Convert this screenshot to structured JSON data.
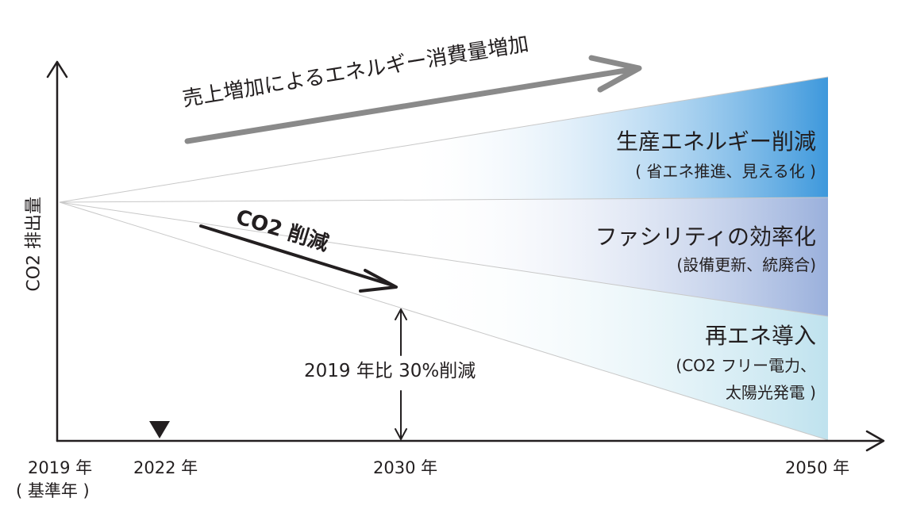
{
  "y_axis_label": "CO2 排出量",
  "x_axis": {
    "ticks": [
      {
        "label": "2019 年",
        "sublabel": "( 基準年 )"
      },
      {
        "label": "2022 年",
        "marker": "down-triangle"
      },
      {
        "label": "2030 年"
      },
      {
        "label": "2050 年"
      }
    ]
  },
  "upper_arrow_label": "売上増加によるエネルギー消費量増加",
  "co2_arrow_label": "CO2 削減",
  "reduction_label": "2019 年比 30%削減",
  "bands": [
    {
      "title": "生産エネルギー削減",
      "subtitle": "( 省エネ推進、見える化 )"
    },
    {
      "title": "ファシリティの効率化",
      "subtitle": "(設備更新、統廃合)"
    },
    {
      "title": "再エネ導入",
      "subtitle_lines": [
        "(CO2 フリー電力、",
        "太陽光発電 )"
      ]
    }
  ],
  "colors": {
    "band_top": "#3d98dc",
    "band_middle": "#9ab0dc",
    "band_bottom": "#bfe2ee",
    "gray_arrow": "#8a8a8a",
    "axis": "#231f20"
  }
}
